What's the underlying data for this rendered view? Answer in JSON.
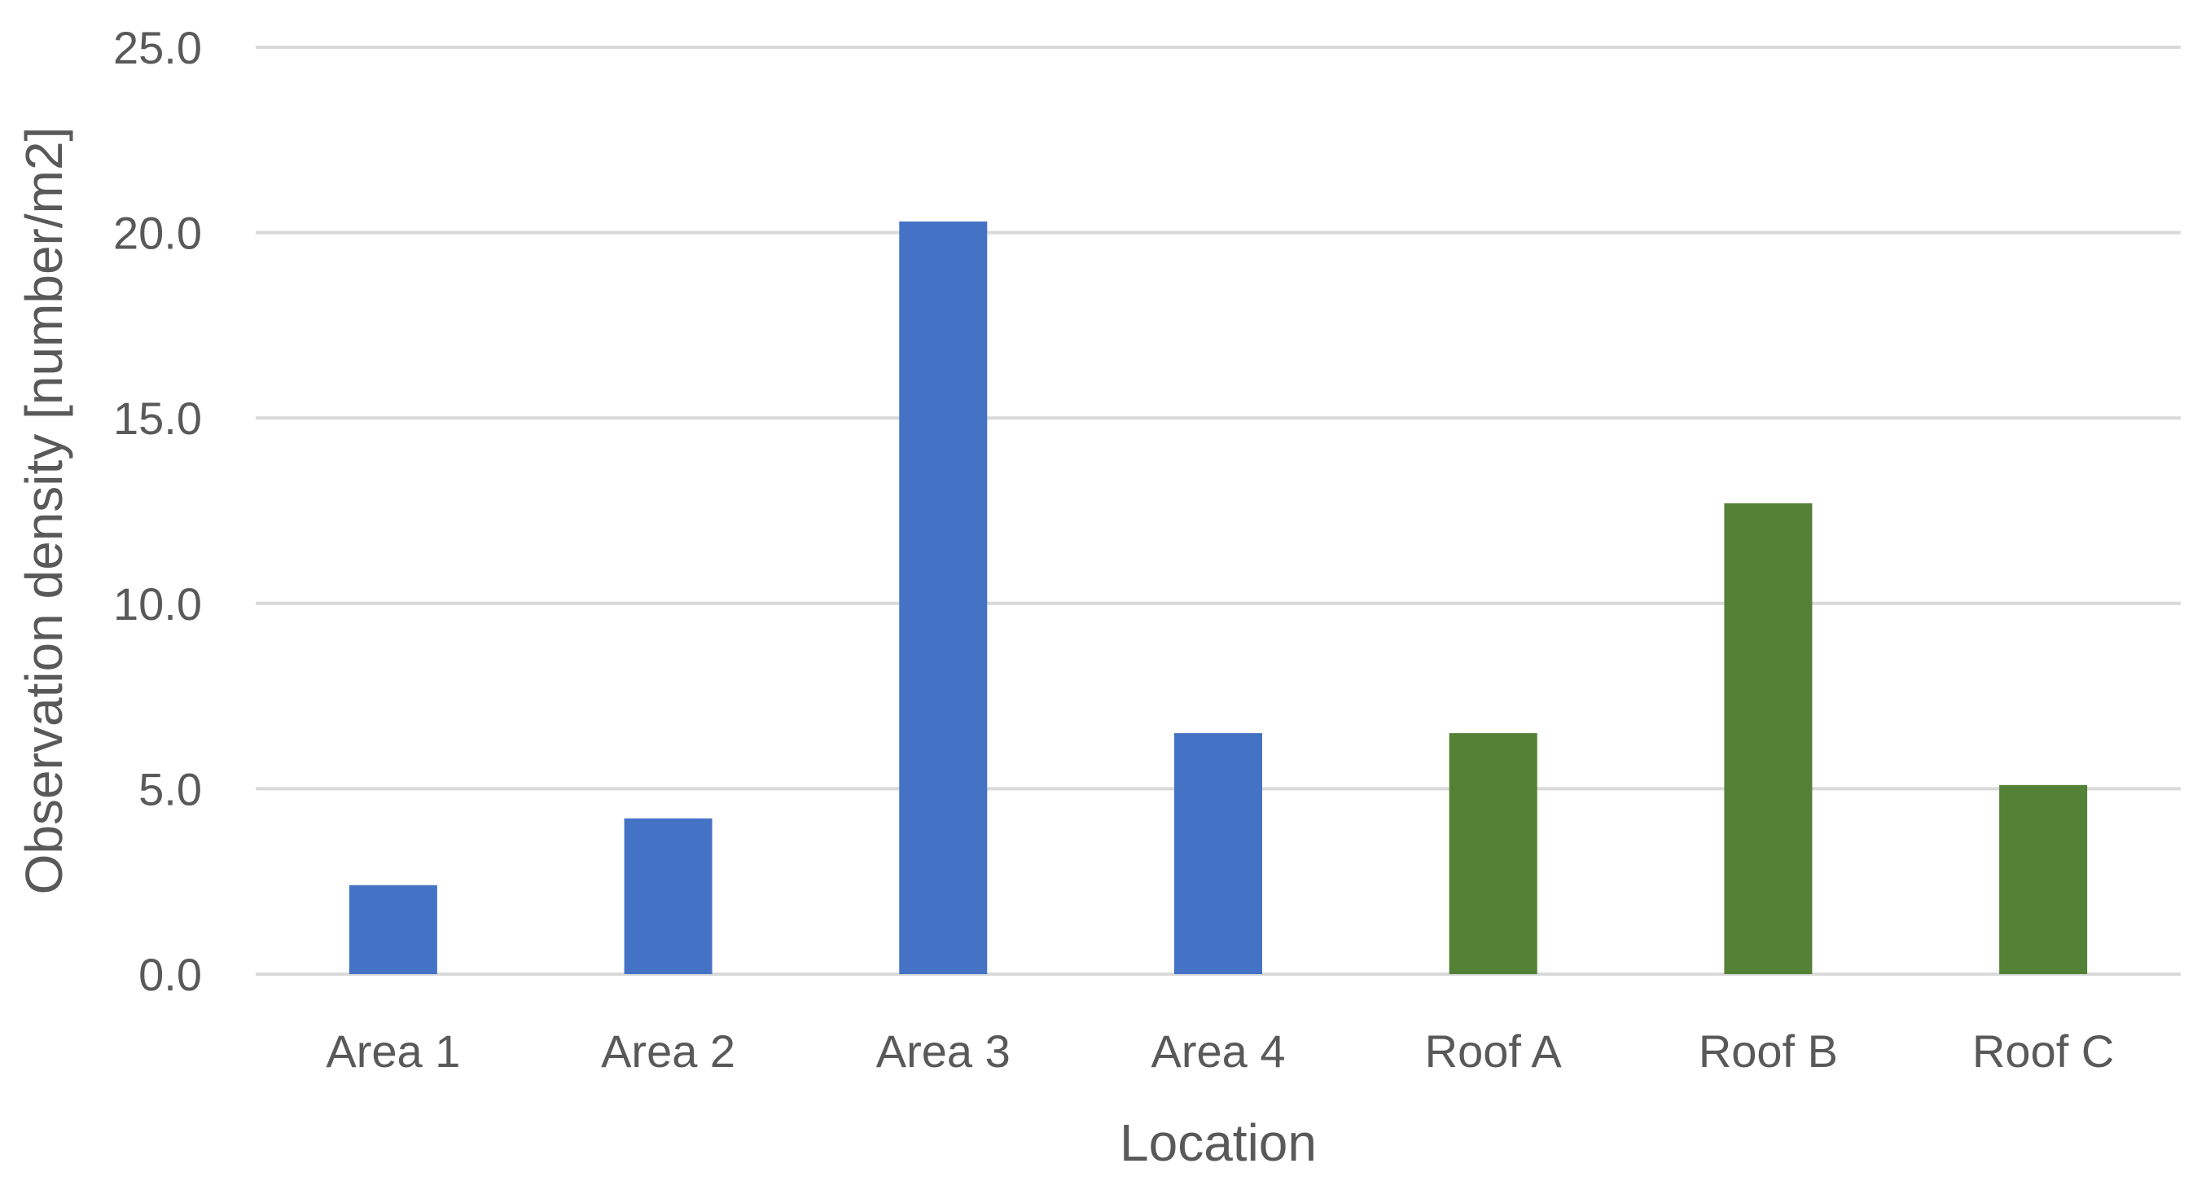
{
  "chart_data": {
    "type": "bar",
    "title": "",
    "xlabel": "Location",
    "ylabel": "Observation density [number/m2]",
    "categories": [
      "Area 1",
      "Area 2",
      "Area 3",
      "Area 4",
      "Roof A",
      "Roof B",
      "Roof C"
    ],
    "values": [
      2.4,
      4.2,
      20.3,
      6.5,
      6.5,
      12.7,
      5.1
    ],
    "bar_colors": [
      "#4472c4",
      "#4472c4",
      "#4472c4",
      "#4472c4",
      "#538135",
      "#538135",
      "#538135"
    ],
    "ylim": [
      0,
      25
    ],
    "yticks": [
      "0.0",
      "5.0",
      "10.0",
      "15.0",
      "20.0",
      "25.0"
    ],
    "grid": true,
    "legend": "none"
  }
}
